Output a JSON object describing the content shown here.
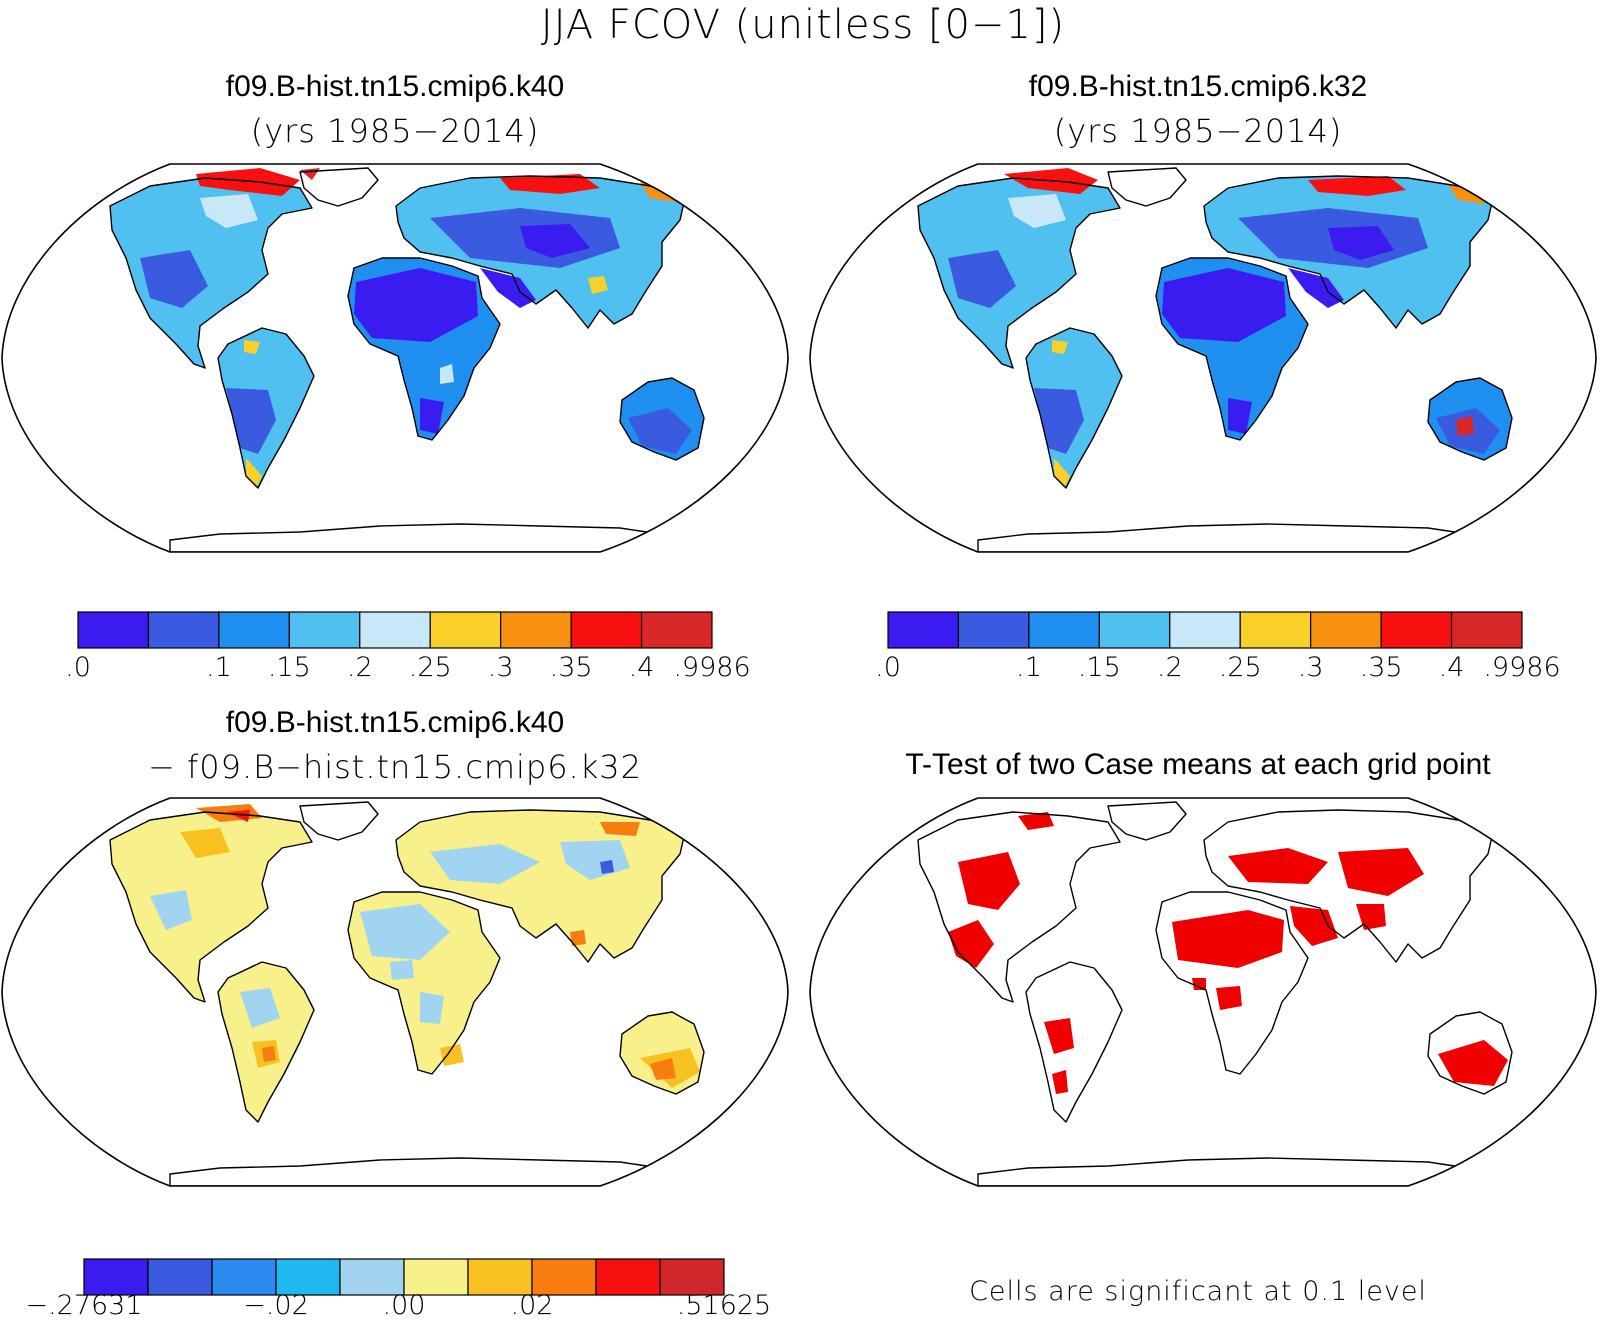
{
  "title": "JJA FCOV (unitless [0−1])",
  "panels": [
    {
      "id": "top-left",
      "title": "f09.B-hist.tn15.cmip6.k40",
      "subtitle": "(yrs 1985−2014)",
      "palette": "abs"
    },
    {
      "id": "top-right",
      "title": "f09.B-hist.tn15.cmip6.k32",
      "subtitle": "(yrs 1985−2014)",
      "palette": "abs"
    },
    {
      "id": "bottom-left",
      "title": "f09.B-hist.tn15.cmip6.k40",
      "subtitle": "− f09.B−hist.tn15.cmip6.k32",
      "palette": "diff"
    },
    {
      "id": "bottom-right",
      "title": "T-Test of two Case means at each grid point",
      "subtitle": "",
      "palette": "ttest",
      "note": "Cells are significant at 0.1 level"
    }
  ],
  "colorbars": {
    "abs": {
      "colors": [
        "#3a1cf0",
        "#3a5ae0",
        "#2090f0",
        "#50c0f0",
        "#c8e8f8",
        "#f8d028",
        "#f89010",
        "#f81010",
        "#d82828"
      ],
      "labels": [
        ".0",
        ".1",
        ".15",
        ".2",
        ".25",
        ".3",
        ".35",
        ".4",
        ".9986"
      ],
      "label_positions": [
        0,
        2,
        3,
        4,
        5,
        6,
        7,
        8,
        9
      ]
    },
    "diff": {
      "colors": [
        "#3a1cf0",
        "#3a5ae0",
        "#2a8af0",
        "#20b8f0",
        "#a0d4f0",
        "#f8f08a",
        "#f8c020",
        "#f87c10",
        "#f81010",
        "#d02828"
      ],
      "labels": [
        "−.27631",
        "−.02",
        ".00",
        ".02",
        ".51625"
      ],
      "label_positions": [
        0,
        3,
        5,
        7,
        10
      ]
    }
  },
  "legend_colors": {
    "ocean": "#ffffff",
    "coast": "#000000",
    "significant": "#f00000"
  },
  "map": {
    "projection": "Robinson",
    "continents": [
      "North America",
      "South America",
      "Europe",
      "Africa",
      "Asia",
      "Australia",
      "Greenland",
      "Antarctica"
    ]
  }
}
